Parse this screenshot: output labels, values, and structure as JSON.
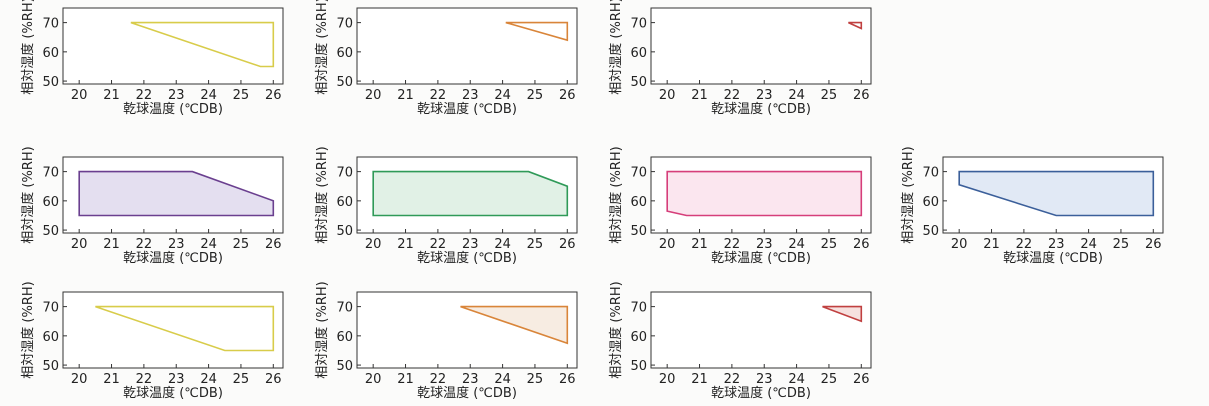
{
  "chart_data": [
    {
      "type": "area",
      "title": "",
      "xlabel": "乾球温度 (℃DB)",
      "ylabel": "相対湿度 (%RH)",
      "xlim": [
        19.5,
        26.3
      ],
      "ylim": [
        49,
        75
      ],
      "xticks": [
        20,
        21,
        22,
        23,
        24,
        25,
        26
      ],
      "yticks": [
        50,
        60,
        70
      ],
      "color": "#d8cc4a",
      "fill": "none",
      "series": [
        {
          "x": [
            21.6,
            26.0,
            26.0,
            25.6
          ],
          "y": [
            70,
            70,
            55,
            55
          ]
        }
      ]
    },
    {
      "type": "area",
      "title": "",
      "xlabel": "乾球温度 (℃DB)",
      "ylabel": "相対湿度 (%RH)",
      "xlim": [
        19.5,
        26.3
      ],
      "ylim": [
        49,
        75
      ],
      "xticks": [
        20,
        21,
        22,
        23,
        24,
        25,
        26
      ],
      "yticks": [
        50,
        60,
        70
      ],
      "color": "#d9853a",
      "fill": "none",
      "series": [
        {
          "x": [
            24.1,
            26.0,
            26.0
          ],
          "y": [
            70,
            70,
            64
          ]
        }
      ]
    },
    {
      "type": "area",
      "title": "",
      "xlabel": "乾球温度 (℃DB)",
      "ylabel": "相対湿度 (%RH)",
      "xlim": [
        19.5,
        26.3
      ],
      "ylim": [
        49,
        75
      ],
      "xticks": [
        20,
        21,
        22,
        23,
        24,
        25,
        26
      ],
      "yticks": [
        50,
        60,
        70
      ],
      "color": "#c04040",
      "fill": "none",
      "series": [
        {
          "x": [
            25.6,
            26.0,
            26.0
          ],
          "y": [
            70,
            70,
            68
          ]
        }
      ]
    },
    {
      "type": "area",
      "title": "",
      "xlabel": "乾球温度 (℃DB)",
      "ylabel": "相対湿度 (%RH)",
      "xlim": [
        19.5,
        26.3
      ],
      "ylim": [
        49,
        75
      ],
      "xticks": [
        20,
        21,
        22,
        23,
        24,
        25,
        26
      ],
      "yticks": [
        50,
        60,
        70
      ],
      "color": "#6a3f8f",
      "fill": "#e4dff0",
      "series": [
        {
          "x": [
            20.0,
            23.5,
            26.0,
            26.0,
            20.0
          ],
          "y": [
            70,
            70,
            60,
            55,
            55
          ]
        }
      ]
    },
    {
      "type": "area",
      "title": "",
      "xlabel": "乾球温度 (℃DB)",
      "ylabel": "相対湿度 (%RH)",
      "xlim": [
        19.5,
        26.3
      ],
      "ylim": [
        49,
        75
      ],
      "xticks": [
        20,
        21,
        22,
        23,
        24,
        25,
        26
      ],
      "yticks": [
        50,
        60,
        70
      ],
      "color": "#2f9a58",
      "fill": "#e1f1e6",
      "series": [
        {
          "x": [
            20.0,
            24.8,
            26.0,
            26.0,
            20.0
          ],
          "y": [
            70,
            70,
            65,
            55,
            55
          ]
        }
      ]
    },
    {
      "type": "area",
      "title": "",
      "xlabel": "乾球温度 (℃DB)",
      "ylabel": "相対湿度 (%RH)",
      "xlim": [
        19.5,
        26.3
      ],
      "ylim": [
        49,
        75
      ],
      "xticks": [
        20,
        21,
        22,
        23,
        24,
        25,
        26
      ],
      "yticks": [
        50,
        60,
        70
      ],
      "color": "#d63e7a",
      "fill": "#fbe6ef",
      "series": [
        {
          "x": [
            20.0,
            26.0,
            26.0,
            20.6,
            20.0
          ],
          "y": [
            70,
            70,
            55,
            55,
            56.5
          ]
        }
      ]
    },
    {
      "type": "area",
      "title": "",
      "xlabel": "乾球温度 (℃DB)",
      "ylabel": "相対湿度 (%RH)",
      "xlim": [
        19.5,
        26.3
      ],
      "ylim": [
        49,
        75
      ],
      "xticks": [
        20,
        21,
        22,
        23,
        24,
        25,
        26
      ],
      "yticks": [
        50,
        60,
        70
      ],
      "color": "#3b5f9a",
      "fill": "#e1e9f5",
      "series": [
        {
          "x": [
            20.0,
            26.0,
            26.0,
            23.0,
            20.0
          ],
          "y": [
            70,
            70,
            55,
            55,
            65.5
          ]
        }
      ]
    },
    {
      "type": "area",
      "title": "",
      "xlabel": "乾球温度 (℃DB)",
      "ylabel": "相対湿度 (%RH)",
      "xlim": [
        19.5,
        26.3
      ],
      "ylim": [
        49,
        75
      ],
      "xticks": [
        20,
        21,
        22,
        23,
        24,
        25,
        26
      ],
      "yticks": [
        50,
        60,
        70
      ],
      "color": "#d8cc4a",
      "fill": "none",
      "series": [
        {
          "x": [
            20.5,
            26.0,
            26.0,
            24.5
          ],
          "y": [
            70,
            70,
            55,
            55
          ]
        }
      ]
    },
    {
      "type": "area",
      "title": "",
      "xlabel": "乾球温度 (℃DB)",
      "ylabel": "相対湿度 (%RH)",
      "xlim": [
        19.5,
        26.3
      ],
      "ylim": [
        49,
        75
      ],
      "xticks": [
        20,
        21,
        22,
        23,
        24,
        25,
        26
      ],
      "yticks": [
        50,
        60,
        70
      ],
      "color": "#d9853a",
      "fill": "#f7ece2",
      "series": [
        {
          "x": [
            22.7,
            26.0,
            26.0
          ],
          "y": [
            70,
            70,
            57.5
          ]
        }
      ]
    },
    {
      "type": "area",
      "title": "",
      "xlabel": "乾球温度 (℃DB)",
      "ylabel": "相対湿度 (%RH)",
      "xlim": [
        19.5,
        26.3
      ],
      "ylim": [
        49,
        75
      ],
      "xticks": [
        20,
        21,
        22,
        23,
        24,
        25,
        26
      ],
      "yticks": [
        50,
        60,
        70
      ],
      "color": "#c04040",
      "fill": "#f6e1df",
      "series": [
        {
          "x": [
            24.8,
            26.0,
            26.0
          ],
          "y": [
            70,
            70,
            65
          ]
        }
      ]
    }
  ]
}
